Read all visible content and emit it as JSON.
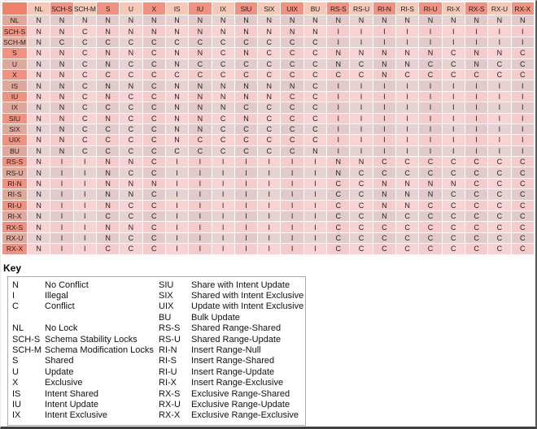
{
  "chart_data": {
    "type": "table",
    "columns": [
      "NL",
      "SCH-S",
      "SCH-M",
      "S",
      "U",
      "X",
      "IS",
      "IU",
      "IX",
      "SIU",
      "SIX",
      "UIX",
      "BU",
      "RS-S",
      "RS-U",
      "RI-N",
      "RI-S",
      "RI-U",
      "RI-X",
      "RX-S",
      "RX-U",
      "RX-X"
    ],
    "rows": [
      {
        "label": "NL",
        "values": [
          "N",
          "N",
          "N",
          "N",
          "N",
          "N",
          "N",
          "N",
          "N",
          "N",
          "N",
          "N",
          "N",
          "N",
          "N",
          "N",
          "N",
          "N",
          "N",
          "N",
          "N",
          "N"
        ]
      },
      {
        "label": "SCH-S",
        "values": [
          "N",
          "N",
          "C",
          "N",
          "N",
          "N",
          "N",
          "N",
          "N",
          "N",
          "N",
          "N",
          "N",
          "I",
          "I",
          "I",
          "I",
          "I",
          "I",
          "I",
          "I",
          "I"
        ]
      },
      {
        "label": "SCH-M",
        "values": [
          "N",
          "C",
          "C",
          "C",
          "C",
          "C",
          "C",
          "C",
          "C",
          "C",
          "C",
          "C",
          "C",
          "I",
          "I",
          "I",
          "I",
          "I",
          "I",
          "I",
          "I",
          "I"
        ]
      },
      {
        "label": "S",
        "values": [
          "N",
          "N",
          "C",
          "N",
          "N",
          "C",
          "N",
          "N",
          "C",
          "N",
          "C",
          "C",
          "C",
          "N",
          "N",
          "N",
          "N",
          "N",
          "C",
          "N",
          "N",
          "C"
        ]
      },
      {
        "label": "U",
        "values": [
          "N",
          "N",
          "C",
          "N",
          "C",
          "C",
          "N",
          "C",
          "C",
          "C",
          "C",
          "C",
          "C",
          "N",
          "C",
          "N",
          "N",
          "C",
          "C",
          "N",
          "C",
          "C"
        ]
      },
      {
        "label": "X",
        "values": [
          "N",
          "N",
          "C",
          "C",
          "C",
          "C",
          "C",
          "C",
          "C",
          "C",
          "C",
          "C",
          "C",
          "C",
          "C",
          "N",
          "C",
          "C",
          "C",
          "C",
          "C",
          "C"
        ]
      },
      {
        "label": "IS",
        "values": [
          "N",
          "N",
          "C",
          "N",
          "N",
          "C",
          "N",
          "N",
          "N",
          "N",
          "N",
          "N",
          "C",
          "I",
          "I",
          "I",
          "I",
          "I",
          "I",
          "I",
          "I",
          "I"
        ]
      },
      {
        "label": "IU",
        "values": [
          "N",
          "N",
          "C",
          "N",
          "C",
          "C",
          "N",
          "N",
          "N",
          "N",
          "N",
          "C",
          "C",
          "I",
          "I",
          "I",
          "I",
          "I",
          "I",
          "I",
          "I",
          "I"
        ]
      },
      {
        "label": "IX",
        "values": [
          "N",
          "N",
          "C",
          "C",
          "C",
          "C",
          "N",
          "N",
          "N",
          "C",
          "C",
          "C",
          "C",
          "I",
          "I",
          "I",
          "I",
          "I",
          "I",
          "I",
          "I",
          "I"
        ]
      },
      {
        "label": "SIU",
        "values": [
          "N",
          "N",
          "C",
          "N",
          "C",
          "C",
          "N",
          "N",
          "C",
          "N",
          "C",
          "C",
          "C",
          "I",
          "I",
          "I",
          "I",
          "I",
          "I",
          "I",
          "I",
          "I"
        ]
      },
      {
        "label": "SIX",
        "values": [
          "N",
          "N",
          "C",
          "C",
          "C",
          "C",
          "N",
          "N",
          "C",
          "C",
          "C",
          "C",
          "C",
          "I",
          "I",
          "I",
          "I",
          "I",
          "I",
          "I",
          "I",
          "I"
        ]
      },
      {
        "label": "UIX",
        "values": [
          "N",
          "N",
          "C",
          "C",
          "C",
          "C",
          "N",
          "C",
          "C",
          "C",
          "C",
          "C",
          "C",
          "I",
          "I",
          "I",
          "I",
          "I",
          "I",
          "I",
          "I",
          "I"
        ]
      },
      {
        "label": "BU",
        "values": [
          "N",
          "N",
          "C",
          "C",
          "C",
          "C",
          "C",
          "C",
          "C",
          "C",
          "C",
          "C",
          "N",
          "I",
          "I",
          "I",
          "I",
          "I",
          "I",
          "I",
          "I",
          "I"
        ]
      },
      {
        "label": "RS-S",
        "values": [
          "N",
          "I",
          "I",
          "N",
          "N",
          "C",
          "I",
          "I",
          "I",
          "I",
          "I",
          "I",
          "I",
          "N",
          "N",
          "C",
          "C",
          "C",
          "C",
          "C",
          "C",
          "C"
        ]
      },
      {
        "label": "RS-U",
        "values": [
          "N",
          "I",
          "I",
          "N",
          "C",
          "C",
          "I",
          "I",
          "I",
          "I",
          "I",
          "I",
          "I",
          "N",
          "C",
          "C",
          "C",
          "C",
          "C",
          "C",
          "C",
          "C"
        ]
      },
      {
        "label": "RI-N",
        "values": [
          "N",
          "I",
          "I",
          "N",
          "N",
          "N",
          "I",
          "I",
          "I",
          "I",
          "I",
          "I",
          "I",
          "C",
          "C",
          "N",
          "N",
          "N",
          "N",
          "C",
          "C",
          "C"
        ]
      },
      {
        "label": "RI-S",
        "values": [
          "N",
          "I",
          "I",
          "N",
          "N",
          "C",
          "I",
          "I",
          "I",
          "I",
          "I",
          "I",
          "I",
          "C",
          "C",
          "N",
          "N",
          "N",
          "C",
          "C",
          "C",
          "C"
        ]
      },
      {
        "label": "RI-U",
        "values": [
          "N",
          "I",
          "I",
          "N",
          "C",
          "C",
          "I",
          "I",
          "I",
          "I",
          "I",
          "I",
          "I",
          "C",
          "C",
          "N",
          "N",
          "C",
          "C",
          "C",
          "C",
          "C"
        ]
      },
      {
        "label": "RI-X",
        "values": [
          "N",
          "I",
          "I",
          "C",
          "C",
          "C",
          "I",
          "I",
          "I",
          "I",
          "I",
          "I",
          "I",
          "C",
          "C",
          "N",
          "C",
          "C",
          "C",
          "C",
          "C",
          "C"
        ]
      },
      {
        "label": "RX-S",
        "values": [
          "N",
          "I",
          "I",
          "N",
          "N",
          "C",
          "I",
          "I",
          "I",
          "I",
          "I",
          "I",
          "I",
          "C",
          "C",
          "C",
          "C",
          "C",
          "C",
          "C",
          "C",
          "C"
        ]
      },
      {
        "label": "RX-U",
        "values": [
          "N",
          "I",
          "I",
          "N",
          "C",
          "C",
          "I",
          "I",
          "I",
          "I",
          "I",
          "I",
          "I",
          "C",
          "C",
          "C",
          "C",
          "C",
          "C",
          "C",
          "C",
          "C"
        ]
      },
      {
        "label": "RX-X",
        "values": [
          "N",
          "I",
          "I",
          "C",
          "C",
          "C",
          "I",
          "I",
          "I",
          "I",
          "I",
          "I",
          "I",
          "C",
          "C",
          "C",
          "C",
          "C",
          "C",
          "C",
          "C",
          "C"
        ]
      }
    ]
  },
  "key": {
    "heading": "Key",
    "left": [
      {
        "abbr": "N",
        "desc": "No Conflict"
      },
      {
        "abbr": "I",
        "desc": "Illegal"
      },
      {
        "abbr": "C",
        "desc": "Conflict"
      },
      {
        "abbr": "",
        "desc": ""
      },
      {
        "abbr": "NL",
        "desc": "No Lock"
      },
      {
        "abbr": "SCH-S",
        "desc": "Schema Stability Locks"
      },
      {
        "abbr": "SCH-M",
        "desc": "Schema Modification Locks"
      },
      {
        "abbr": "S",
        "desc": "Shared"
      },
      {
        "abbr": "U",
        "desc": "Update"
      },
      {
        "abbr": "X",
        "desc": "Exclusive"
      },
      {
        "abbr": "IS",
        "desc": "Intent Shared"
      },
      {
        "abbr": "IU",
        "desc": "Intent Update"
      },
      {
        "abbr": "IX",
        "desc": "Intent Exclusive"
      }
    ],
    "right": [
      {
        "abbr": "SIU",
        "desc": "Share with Intent Update"
      },
      {
        "abbr": "SIX",
        "desc": "Shared with Intent Exclusive"
      },
      {
        "abbr": "UIX",
        "desc": "Update with Intent Exclusive"
      },
      {
        "abbr": "BU",
        "desc": "Bulk Update"
      },
      {
        "abbr": "RS-S",
        "desc": "Shared Range-Shared"
      },
      {
        "abbr": "RS-U",
        "desc": "Shared Range-Update"
      },
      {
        "abbr": "RI-N",
        "desc": "Insert Range-Null"
      },
      {
        "abbr": "RI-S",
        "desc": "Insert Range-Shared"
      },
      {
        "abbr": "RI-U",
        "desc": "Insert Range-Update"
      },
      {
        "abbr": "RI-X",
        "desc": "Insert Range-Exclusive"
      },
      {
        "abbr": "RX-S",
        "desc": "Exclusive Range-Shared"
      },
      {
        "abbr": "RX-U",
        "desc": "Exclusive Range-Update"
      },
      {
        "abbr": "RX-X",
        "desc": "Exclusive Range-Exclusive"
      }
    ]
  },
  "colors": {
    "corner_cell": "#f0826c",
    "header_light": "#f6c8b8",
    "header_dark": "#f19180",
    "row_header_bright": "#f19180",
    "row_header_muted": "#dfa89b",
    "row_pink": "#f9d3d3",
    "row_gray": "#e7d1d1",
    "frame_dark": "#404040"
  }
}
